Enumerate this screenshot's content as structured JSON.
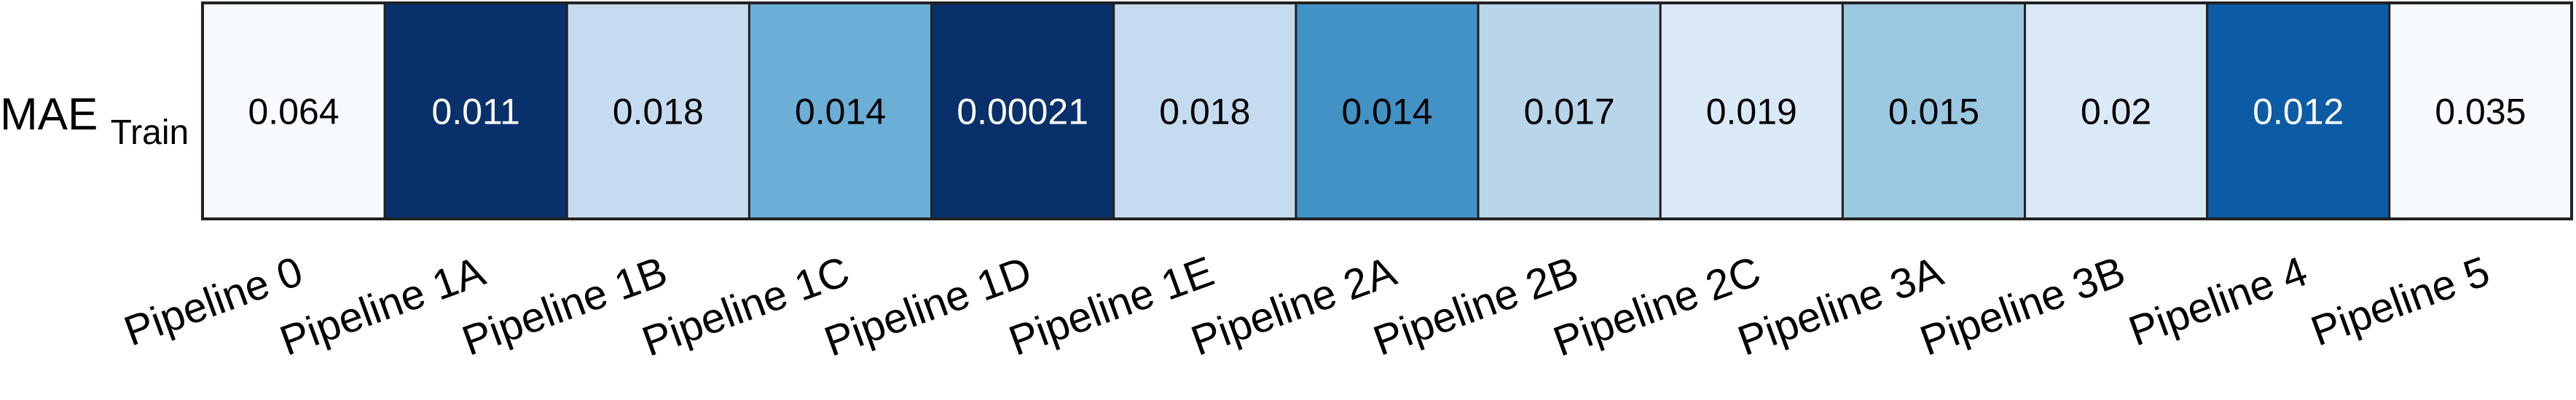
{
  "chart_data": {
    "type": "heatmap",
    "row_label_main": "MAE",
    "row_label_sub": "Train",
    "categories": [
      "Pipeline 0",
      "Pipeline 1A",
      "Pipeline 1B",
      "Pipeline 1C",
      "Pipeline 1D",
      "Pipeline 1E",
      "Pipeline 2A",
      "Pipeline 2B",
      "Pipeline 2C",
      "Pipeline 3A",
      "Pipeline 3B",
      "Pipeline 4",
      "Pipeline 5"
    ],
    "values": [
      0.064,
      0.011,
      0.018,
      0.014,
      0.00021,
      0.018,
      0.014,
      0.017,
      0.019,
      0.015,
      0.02,
      0.012,
      0.035
    ],
    "value_labels": [
      "0.064",
      "0.011",
      "0.018",
      "0.014",
      "0.00021",
      "0.018",
      "0.014",
      "0.017",
      "0.019",
      "0.015",
      "0.02",
      "0.012",
      "0.035"
    ],
    "cell_colors": [
      "#f7fbff",
      "#08306b",
      "#c6dbef",
      "#6baed6",
      "#08306b",
      "#c6dbef",
      "#4292c6",
      "#b9d5ea",
      "#dbe9f6",
      "#9ac8e0",
      "#dbe9f6",
      "#0c5ba5",
      "#f7fbff"
    ],
    "text_colors": [
      "#000000",
      "#ffffff",
      "#000000",
      "#000000",
      "#ffffff",
      "#000000",
      "#000000",
      "#000000",
      "#000000",
      "#000000",
      "#000000",
      "#ffffff",
      "#000000"
    ],
    "colormap": "Blues"
  }
}
